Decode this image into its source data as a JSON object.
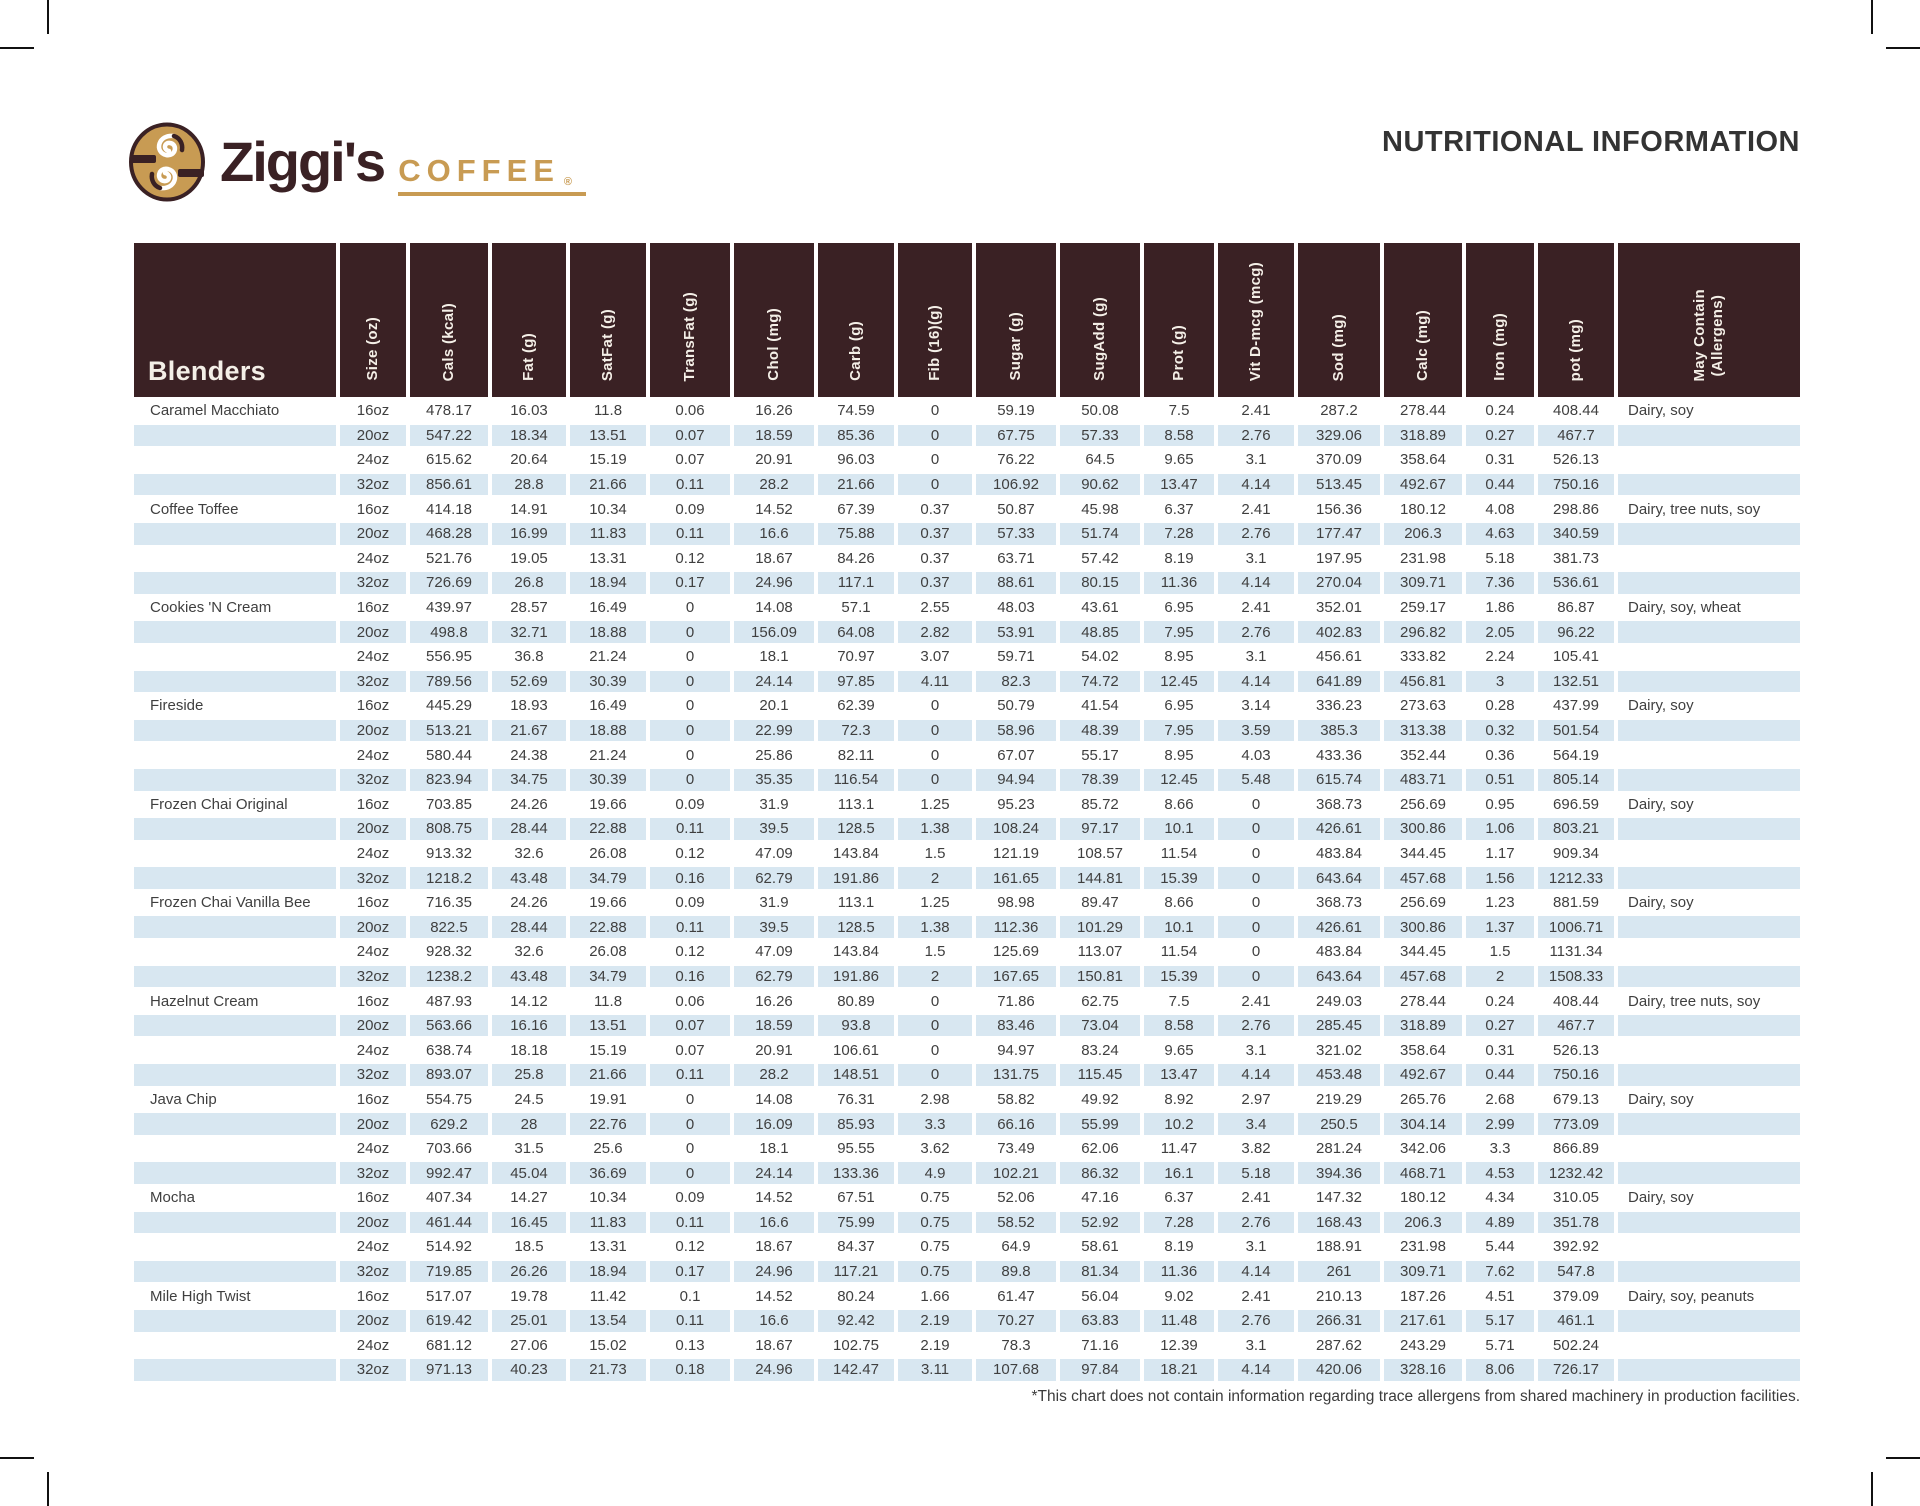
{
  "page": {
    "title": "NUTRITIONAL INFORMATION",
    "footnote": "*This chart does not contain information regarding trace allergens from shared machinery in production facilities."
  },
  "brand": {
    "name": "Ziggi's",
    "word": "COFFEE",
    "registered": "®"
  },
  "colors": {
    "header_brown": "#3a2124",
    "row_blue": "#d8e7f1",
    "gold": "#c89b53",
    "text": "#3f3f3f"
  },
  "chart_data": {
    "type": "table",
    "group_header": "Blenders",
    "columns": [
      "Size (oz)",
      "Cals (kcal)",
      "Fat (g)",
      "SatFat (g)",
      "TransFat (g)",
      "Chol (mg)",
      "Carb (g)",
      "Fib (16)(g)",
      "Sugar (g)",
      "SugAdd (g)",
      "Prot (g)",
      "Vit D-mcg (mcg)",
      "Sod (mg)",
      "Calc (mg)",
      "Iron (mg)",
      "pot (mg)",
      "May Contain\n(Allergens)"
    ],
    "products": [
      {
        "name": "Caramel Macchiato",
        "allergens": "Dairy, soy",
        "sizes": [
          {
            "size": "16oz",
            "values": [
              "478.17",
              "16.03",
              "11.8",
              "0.06",
              "16.26",
              "74.59",
              "0",
              "59.19",
              "50.08",
              "7.5",
              "2.41",
              "287.2",
              "278.44",
              "0.24",
              "408.44"
            ]
          },
          {
            "size": "20oz",
            "values": [
              "547.22",
              "18.34",
              "13.51",
              "0.07",
              "18.59",
              "85.36",
              "0",
              "67.75",
              "57.33",
              "8.58",
              "2.76",
              "329.06",
              "318.89",
              "0.27",
              "467.7"
            ]
          },
          {
            "size": "24oz",
            "values": [
              "615.62",
              "20.64",
              "15.19",
              "0.07",
              "20.91",
              "96.03",
              "0",
              "76.22",
              "64.5",
              "9.65",
              "3.1",
              "370.09",
              "358.64",
              "0.31",
              "526.13"
            ]
          },
          {
            "size": "32oz",
            "values": [
              "856.61",
              "28.8",
              "21.66",
              "0.11",
              "28.2",
              "21.66",
              "0",
              "106.92",
              "90.62",
              "13.47",
              "4.14",
              "513.45",
              "492.67",
              "0.44",
              "750.16"
            ]
          }
        ]
      },
      {
        "name": "Coffee Toffee",
        "allergens": "Dairy, tree nuts, soy",
        "sizes": [
          {
            "size": "16oz",
            "values": [
              "414.18",
              "14.91",
              "10.34",
              "0.09",
              "14.52",
              "67.39",
              "0.37",
              "50.87",
              "45.98",
              "6.37",
              "2.41",
              "156.36",
              "180.12",
              "4.08",
              "298.86"
            ]
          },
          {
            "size": "20oz",
            "values": [
              "468.28",
              "16.99",
              "11.83",
              "0.11",
              "16.6",
              "75.88",
              "0.37",
              "57.33",
              "51.74",
              "7.28",
              "2.76",
              "177.47",
              "206.3",
              "4.63",
              "340.59"
            ]
          },
          {
            "size": "24oz",
            "values": [
              "521.76",
              "19.05",
              "13.31",
              "0.12",
              "18.67",
              "84.26",
              "0.37",
              "63.71",
              "57.42",
              "8.19",
              "3.1",
              "197.95",
              "231.98",
              "5.18",
              "381.73"
            ]
          },
          {
            "size": "32oz",
            "values": [
              "726.69",
              "26.8",
              "18.94",
              "0.17",
              "24.96",
              "117.1",
              "0.37",
              "88.61",
              "80.15",
              "11.36",
              "4.14",
              "270.04",
              "309.71",
              "7.36",
              "536.61"
            ]
          }
        ]
      },
      {
        "name": "Cookies 'N Cream",
        "allergens": "Dairy, soy, wheat",
        "sizes": [
          {
            "size": "16oz",
            "values": [
              "439.97",
              "28.57",
              "16.49",
              "0",
              "14.08",
              "57.1",
              "2.55",
              "48.03",
              "43.61",
              "6.95",
              "2.41",
              "352.01",
              "259.17",
              "1.86",
              "86.87"
            ]
          },
          {
            "size": "20oz",
            "values": [
              "498.8",
              "32.71",
              "18.88",
              "0",
              "156.09",
              "64.08",
              "2.82",
              "53.91",
              "48.85",
              "7.95",
              "2.76",
              "402.83",
              "296.82",
              "2.05",
              "96.22"
            ]
          },
          {
            "size": "24oz",
            "values": [
              "556.95",
              "36.8",
              "21.24",
              "0",
              "18.1",
              "70.97",
              "3.07",
              "59.71",
              "54.02",
              "8.95",
              "3.1",
              "456.61",
              "333.82",
              "2.24",
              "105.41"
            ]
          },
          {
            "size": "32oz",
            "values": [
              "789.56",
              "52.69",
              "30.39",
              "0",
              "24.14",
              "97.85",
              "4.11",
              "82.3",
              "74.72",
              "12.45",
              "4.14",
              "641.89",
              "456.81",
              "3",
              "132.51"
            ]
          }
        ]
      },
      {
        "name": "Fireside",
        "allergens": "Dairy, soy",
        "sizes": [
          {
            "size": "16oz",
            "values": [
              "445.29",
              "18.93",
              "16.49",
              "0",
              "20.1",
              "62.39",
              "0",
              "50.79",
              "41.54",
              "6.95",
              "3.14",
              "336.23",
              "273.63",
              "0.28",
              "437.99"
            ]
          },
          {
            "size": "20oz",
            "values": [
              "513.21",
              "21.67",
              "18.88",
              "0",
              "22.99",
              "72.3",
              "0",
              "58.96",
              "48.39",
              "7.95",
              "3.59",
              "385.3",
              "313.38",
              "0.32",
              "501.54"
            ]
          },
          {
            "size": "24oz",
            "values": [
              "580.44",
              "24.38",
              "21.24",
              "0",
              "25.86",
              "82.11",
              "0",
              "67.07",
              "55.17",
              "8.95",
              "4.03",
              "433.36",
              "352.44",
              "0.36",
              "564.19"
            ]
          },
          {
            "size": "32oz",
            "values": [
              "823.94",
              "34.75",
              "30.39",
              "0",
              "35.35",
              "116.54",
              "0",
              "94.94",
              "78.39",
              "12.45",
              "5.48",
              "615.74",
              "483.71",
              "0.51",
              "805.14"
            ]
          }
        ]
      },
      {
        "name": "Frozen Chai Original",
        "allergens": "Dairy, soy",
        "sizes": [
          {
            "size": "16oz",
            "values": [
              "703.85",
              "24.26",
              "19.66",
              "0.09",
              "31.9",
              "113.1",
              "1.25",
              "95.23",
              "85.72",
              "8.66",
              "0",
              "368.73",
              "256.69",
              "0.95",
              "696.59"
            ]
          },
          {
            "size": "20oz",
            "values": [
              "808.75",
              "28.44",
              "22.88",
              "0.11",
              "39.5",
              "128.5",
              "1.38",
              "108.24",
              "97.17",
              "10.1",
              "0",
              "426.61",
              "300.86",
              "1.06",
              "803.21"
            ]
          },
          {
            "size": "24oz",
            "values": [
              "913.32",
              "32.6",
              "26.08",
              "0.12",
              "47.09",
              "143.84",
              "1.5",
              "121.19",
              "108.57",
              "11.54",
              "0",
              "483.84",
              "344.45",
              "1.17",
              "909.34"
            ]
          },
          {
            "size": "32oz",
            "values": [
              "1218.2",
              "43.48",
              "34.79",
              "0.16",
              "62.79",
              "191.86",
              "2",
              "161.65",
              "144.81",
              "15.39",
              "0",
              "643.64",
              "457.68",
              "1.56",
              "1212.33"
            ]
          }
        ]
      },
      {
        "name": "Frozen Chai Vanilla Bee",
        "allergens": "Dairy, soy",
        "sizes": [
          {
            "size": "16oz",
            "values": [
              "716.35",
              "24.26",
              "19.66",
              "0.09",
              "31.9",
              "113.1",
              "1.25",
              "98.98",
              "89.47",
              "8.66",
              "0",
              "368.73",
              "256.69",
              "1.23",
              "881.59"
            ]
          },
          {
            "size": "20oz",
            "values": [
              "822.5",
              "28.44",
              "22.88",
              "0.11",
              "39.5",
              "128.5",
              "1.38",
              "112.36",
              "101.29",
              "10.1",
              "0",
              "426.61",
              "300.86",
              "1.37",
              "1006.71"
            ]
          },
          {
            "size": "24oz",
            "values": [
              "928.32",
              "32.6",
              "26.08",
              "0.12",
              "47.09",
              "143.84",
              "1.5",
              "125.69",
              "113.07",
              "11.54",
              "0",
              "483.84",
              "344.45",
              "1.5",
              "1131.34"
            ]
          },
          {
            "size": "32oz",
            "values": [
              "1238.2",
              "43.48",
              "34.79",
              "0.16",
              "62.79",
              "191.86",
              "2",
              "167.65",
              "150.81",
              "15.39",
              "0",
              "643.64",
              "457.68",
              "2",
              "1508.33"
            ]
          }
        ]
      },
      {
        "name": "Hazelnut Cream",
        "allergens": "Dairy, tree nuts, soy",
        "sizes": [
          {
            "size": "16oz",
            "values": [
              "487.93",
              "14.12",
              "11.8",
              "0.06",
              "16.26",
              "80.89",
              "0",
              "71.86",
              "62.75",
              "7.5",
              "2.41",
              "249.03",
              "278.44",
              "0.24",
              "408.44"
            ]
          },
          {
            "size": "20oz",
            "values": [
              "563.66",
              "16.16",
              "13.51",
              "0.07",
              "18.59",
              "93.8",
              "0",
              "83.46",
              "73.04",
              "8.58",
              "2.76",
              "285.45",
              "318.89",
              "0.27",
              "467.7"
            ]
          },
          {
            "size": "24oz",
            "values": [
              "638.74",
              "18.18",
              "15.19",
              "0.07",
              "20.91",
              "106.61",
              "0",
              "94.97",
              "83.24",
              "9.65",
              "3.1",
              "321.02",
              "358.64",
              "0.31",
              "526.13"
            ]
          },
          {
            "size": "32oz",
            "values": [
              "893.07",
              "25.8",
              "21.66",
              "0.11",
              "28.2",
              "148.51",
              "0",
              "131.75",
              "115.45",
              "13.47",
              "4.14",
              "453.48",
              "492.67",
              "0.44",
              "750.16"
            ]
          }
        ]
      },
      {
        "name": "Java Chip",
        "allergens": "Dairy, soy",
        "sizes": [
          {
            "size": "16oz",
            "values": [
              "554.75",
              "24.5",
              "19.91",
              "0",
              "14.08",
              "76.31",
              "2.98",
              "58.82",
              "49.92",
              "8.92",
              "2.97",
              "219.29",
              "265.76",
              "2.68",
              "679.13"
            ]
          },
          {
            "size": "20oz",
            "values": [
              "629.2",
              "28",
              "22.76",
              "0",
              "16.09",
              "85.93",
              "3.3",
              "66.16",
              "55.99",
              "10.2",
              "3.4",
              "250.5",
              "304.14",
              "2.99",
              "773.09"
            ]
          },
          {
            "size": "24oz",
            "values": [
              "703.66",
              "31.5",
              "25.6",
              "0",
              "18.1",
              "95.55",
              "3.62",
              "73.49",
              "62.06",
              "11.47",
              "3.82",
              "281.24",
              "342.06",
              "3.3",
              "866.89"
            ]
          },
          {
            "size": "32oz",
            "values": [
              "992.47",
              "45.04",
              "36.69",
              "0",
              "24.14",
              "133.36",
              "4.9",
              "102.21",
              "86.32",
              "16.1",
              "5.18",
              "394.36",
              "468.71",
              "4.53",
              "1232.42"
            ]
          }
        ]
      },
      {
        "name": "Mocha",
        "allergens": "Dairy, soy",
        "sizes": [
          {
            "size": "16oz",
            "values": [
              "407.34",
              "14.27",
              "10.34",
              "0.09",
              "14.52",
              "67.51",
              "0.75",
              "52.06",
              "47.16",
              "6.37",
              "2.41",
              "147.32",
              "180.12",
              "4.34",
              "310.05"
            ]
          },
          {
            "size": "20oz",
            "values": [
              "461.44",
              "16.45",
              "11.83",
              "0.11",
              "16.6",
              "75.99",
              "0.75",
              "58.52",
              "52.92",
              "7.28",
              "2.76",
              "168.43",
              "206.3",
              "4.89",
              "351.78"
            ]
          },
          {
            "size": "24oz",
            "values": [
              "514.92",
              "18.5",
              "13.31",
              "0.12",
              "18.67",
              "84.37",
              "0.75",
              "64.9",
              "58.61",
              "8.19",
              "3.1",
              "188.91",
              "231.98",
              "5.44",
              "392.92"
            ]
          },
          {
            "size": "32oz",
            "values": [
              "719.85",
              "26.26",
              "18.94",
              "0.17",
              "24.96",
              "117.21",
              "0.75",
              "89.8",
              "81.34",
              "11.36",
              "4.14",
              "261",
              "309.71",
              "7.62",
              "547.8"
            ]
          }
        ]
      },
      {
        "name": "Mile High Twist",
        "allergens": "Dairy, soy, peanuts",
        "sizes": [
          {
            "size": "16oz",
            "values": [
              "517.07",
              "19.78",
              "11.42",
              "0.1",
              "14.52",
              "80.24",
              "1.66",
              "61.47",
              "56.04",
              "9.02",
              "2.41",
              "210.13",
              "187.26",
              "4.51",
              "379.09"
            ]
          },
          {
            "size": "20oz",
            "values": [
              "619.42",
              "25.01",
              "13.54",
              "0.11",
              "16.6",
              "92.42",
              "2.19",
              "70.27",
              "63.83",
              "11.48",
              "2.76",
              "266.31",
              "217.61",
              "5.17",
              "461.1"
            ]
          },
          {
            "size": "24oz",
            "values": [
              "681.12",
              "27.06",
              "15.02",
              "0.13",
              "18.67",
              "102.75",
              "2.19",
              "78.3",
              "71.16",
              "12.39",
              "3.1",
              "287.62",
              "243.29",
              "5.71",
              "502.24"
            ]
          },
          {
            "size": "32oz",
            "values": [
              "971.13",
              "40.23",
              "21.73",
              "0.18",
              "24.96",
              "142.47",
              "3.11",
              "107.68",
              "97.84",
              "18.21",
              "4.14",
              "420.06",
              "328.16",
              "8.06",
              "726.17"
            ]
          }
        ]
      }
    ]
  }
}
